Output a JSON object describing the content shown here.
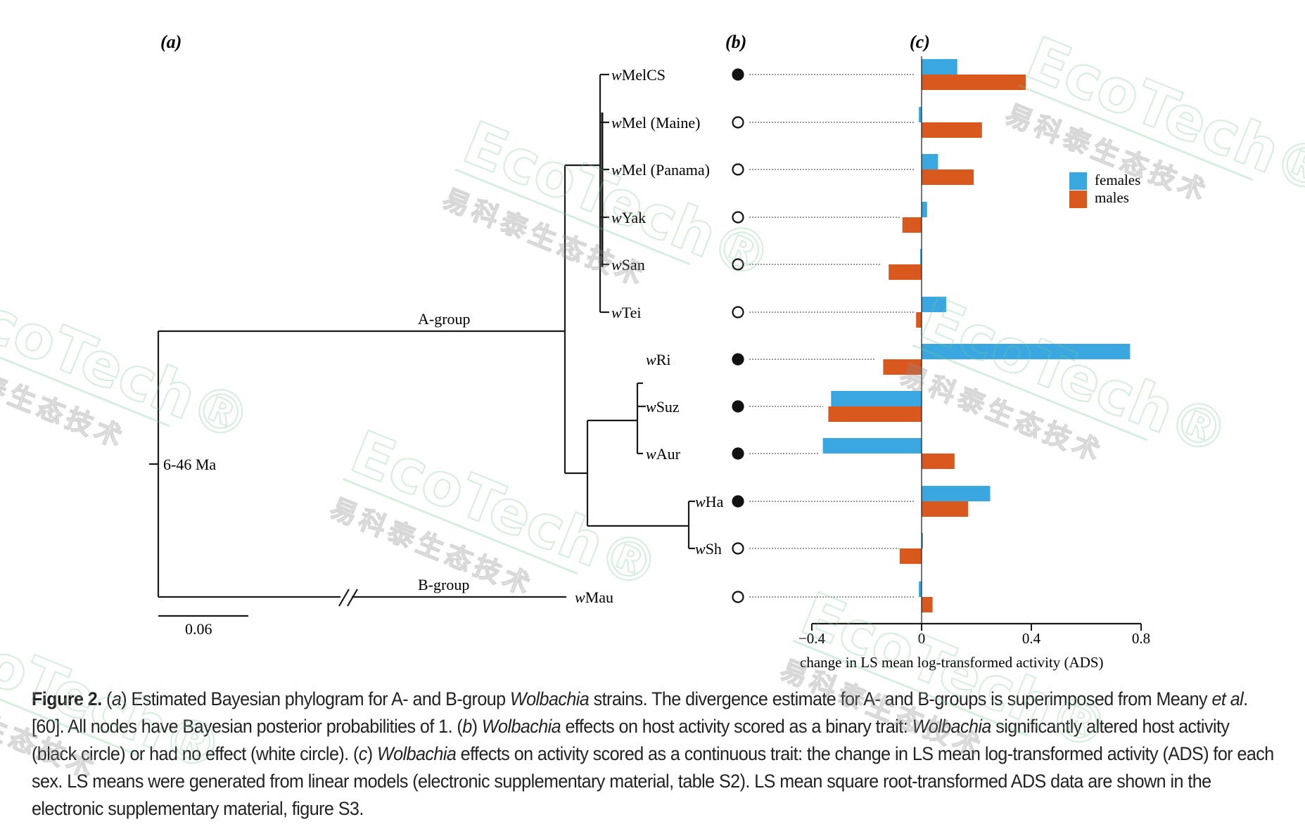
{
  "panels": {
    "a": "(a)",
    "b": "(b)",
    "c": "(c)"
  },
  "tree": {
    "taxa": [
      {
        "prefix": "w",
        "name": "MelCS"
      },
      {
        "prefix": "w",
        "name": "Mel (Maine)"
      },
      {
        "prefix": "w",
        "name": "Mel (Panama)"
      },
      {
        "prefix": "w",
        "name": "Yak"
      },
      {
        "prefix": "w",
        "name": "San"
      },
      {
        "prefix": "w",
        "name": "Tei"
      },
      {
        "prefix": "w",
        "name": "Ri"
      },
      {
        "prefix": "w",
        "name": "Suz"
      },
      {
        "prefix": "w",
        "name": "Aur"
      },
      {
        "prefix": "w",
        "name": "Ha"
      },
      {
        "prefix": "w",
        "name": "Sh"
      },
      {
        "prefix": "w",
        "name": "Mau"
      }
    ],
    "group_a_label": "A-group",
    "group_b_label": "B-group",
    "divergence_label": "6-46 Ma",
    "scale_label": "0.06"
  },
  "binary_effect": [
    true,
    false,
    false,
    false,
    false,
    false,
    true,
    true,
    true,
    true,
    false,
    false
  ],
  "chart_data": {
    "type": "bar",
    "orientation": "horizontal",
    "categories": [
      "wMelCS",
      "wMel (Maine)",
      "wMel (Panama)",
      "wYak",
      "wSan",
      "wTei",
      "wRi",
      "wSuz",
      "wAur",
      "wHa",
      "wSh",
      "wMau"
    ],
    "series": [
      {
        "name": "females",
        "color": "#3aa7e0",
        "values": [
          0.13,
          -0.01,
          0.06,
          0.02,
          -0.005,
          0.09,
          0.76,
          -0.33,
          -0.36,
          0.25,
          0.005,
          -0.01
        ]
      },
      {
        "name": "males",
        "color": "#d9581e",
        "values": [
          0.38,
          0.22,
          0.19,
          -0.07,
          -0.12,
          -0.02,
          -0.14,
          -0.34,
          0.12,
          0.17,
          -0.08,
          0.04
        ]
      }
    ],
    "xlim": [
      -0.4,
      0.8
    ],
    "xticks": [
      "-0.4",
      "0",
      "0.4",
      "0.8"
    ],
    "xlabel": "change in LS mean log-transformed activity (ADS)",
    "legend_position": "top-right"
  },
  "caption": {
    "label": "Figure 2.",
    "parts": [
      {
        "t": " "
      },
      {
        "t": "(",
        "i": false
      },
      {
        "t": "a",
        "i": true
      },
      {
        "t": ") Estimated Bayesian phylogram for A- and B-group "
      },
      {
        "t": "Wolbachia",
        "i": true
      },
      {
        "t": " strains. The divergence estimate for A- and B-groups is superimposed from Meany "
      },
      {
        "t": "et al",
        "i": true
      },
      {
        "t": ". [60]. All nodes have Bayesian posterior probabilities of 1. ("
      },
      {
        "t": "b",
        "i": true
      },
      {
        "t": ") "
      },
      {
        "t": "Wolbachia",
        "i": true
      },
      {
        "t": " effects on host activity scored as a binary trait: "
      },
      {
        "t": "Wolbachia",
        "i": true
      },
      {
        "t": " significantly altered host activity (black circle) or had no effect (white circle). ("
      },
      {
        "t": "c",
        "i": true
      },
      {
        "t": ") "
      },
      {
        "t": "Wolbachia",
        "i": true
      },
      {
        "t": " effects on activity scored as a continuous trait: the change in LS mean log-transformed activity (ADS) for each sex. LS means were generated from linear models (electronic supplementary material, table S2). LS mean square root-transformed ADS data are shown in the electronic supplementary material, figure S3."
      }
    ]
  },
  "watermark": {
    "latin": "EcoTech",
    "reg": "®",
    "cjk": "易科泰生态技术"
  }
}
